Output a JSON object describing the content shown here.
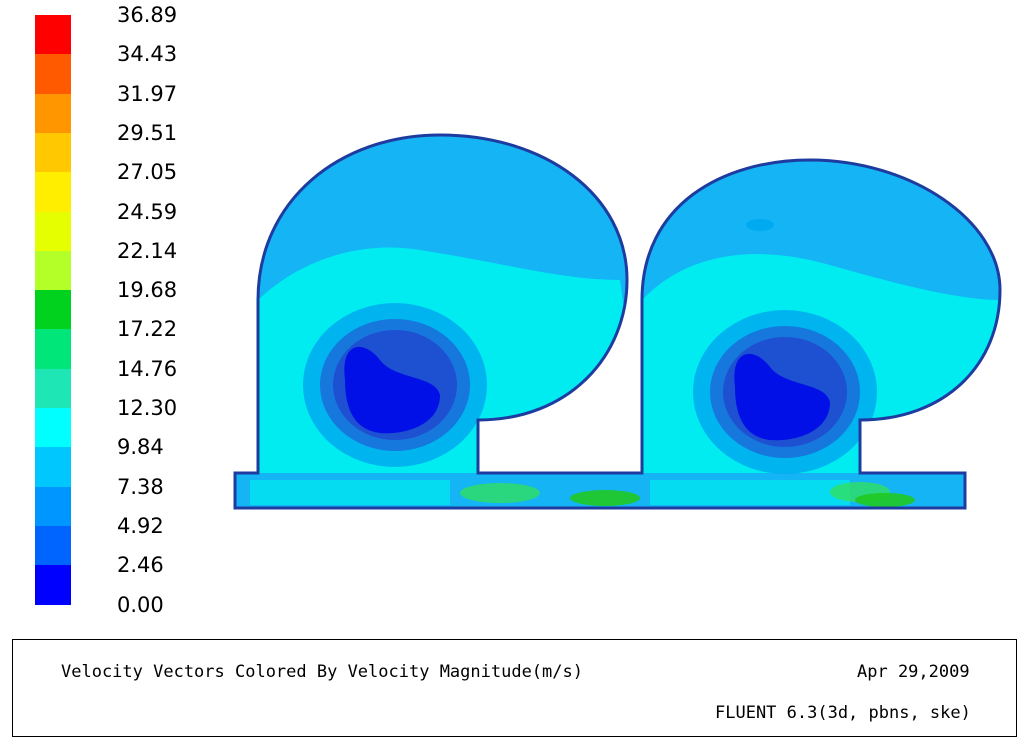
{
  "colorbar": {
    "labels": [
      "36.89",
      "34.43",
      "31.97",
      "29.51",
      "27.05",
      "24.59",
      "22.14",
      "19.68",
      "17.22",
      "14.76",
      "12.30",
      "9.84",
      "7.38",
      "4.92",
      "2.46",
      "0.00"
    ],
    "colors": [
      "#ff0000",
      "#ff5a00",
      "#ff9600",
      "#ffc800",
      "#ffee00",
      "#e6ff00",
      "#b4ff28",
      "#00d21e",
      "#00e678",
      "#1ee6b4",
      "#00ffff",
      "#00c8ff",
      "#0096ff",
      "#0064ff",
      "#0000ff"
    ]
  },
  "footer": {
    "title": "Velocity Vectors Colored By Velocity Magnitude(m/s)",
    "date": "Apr 29,2009",
    "solver": "FLUENT 6.3(3d,  pbns,  ske)"
  },
  "colors": {
    "outer_flow": "#14b4f5",
    "main_flow": "#00ecf0",
    "recirc_ring1": "#00aaf0",
    "recirc_ring2": "#1678dc",
    "recirc_ring3": "#1e50d2",
    "core": "#0010e6",
    "outline": "#1e3ca0",
    "jet": "#30e060",
    "jet_high": "#20c820"
  }
}
